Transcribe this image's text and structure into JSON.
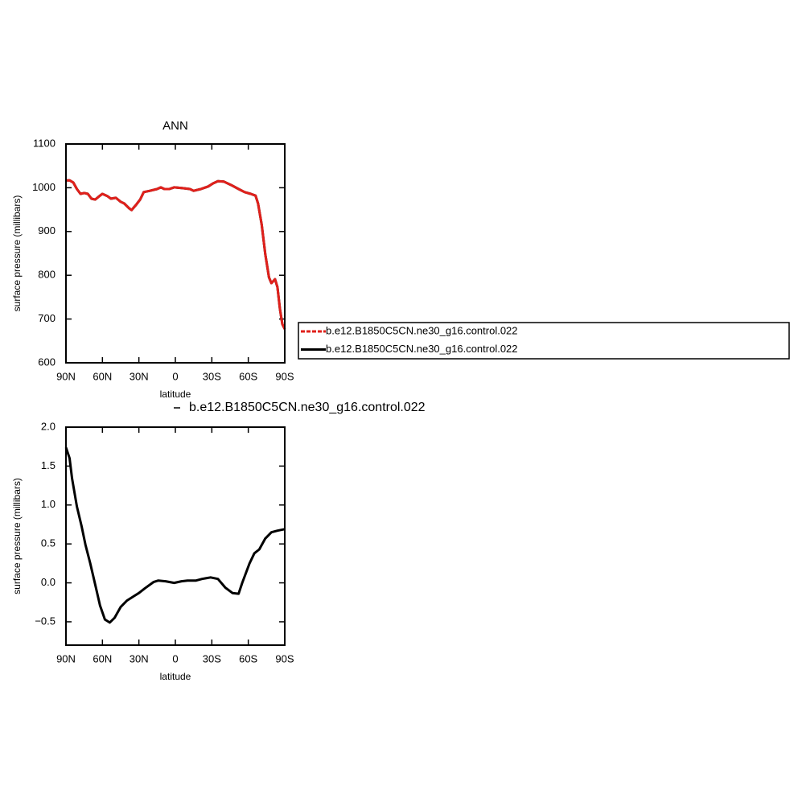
{
  "chart_data": [
    {
      "type": "line",
      "title": "ANN",
      "x_label": "latitude",
      "y_label": "surface pressure (millibars)",
      "xlim": [
        90,
        -90
      ],
      "ylim": [
        600,
        1100
      ],
      "xticks": [
        {
          "value": 90,
          "label": "90N"
        },
        {
          "value": 60,
          "label": "60N"
        },
        {
          "value": 30,
          "label": "30N"
        },
        0,
        {
          "value": -30,
          "label": "30S"
        },
        {
          "value": -60,
          "label": "60S"
        },
        {
          "value": -90,
          "label": "90S"
        }
      ],
      "yticks": [
        600,
        700,
        800,
        900,
        1000,
        1100
      ],
      "legend": "right",
      "x": [
        90,
        87,
        84,
        81,
        78,
        75,
        72,
        69,
        66,
        62,
        60,
        56,
        53,
        49,
        45,
        42,
        38,
        36,
        32,
        29,
        26,
        21,
        15,
        12,
        9,
        5,
        1,
        -6,
        -12,
        -15,
        -21,
        -27,
        -31,
        -35,
        -40,
        -46,
        -52,
        -57,
        -62,
        -66,
        -68,
        -71,
        -74,
        -77,
        -79,
        -82,
        -84,
        -86,
        -88,
        -90
      ],
      "series": [
        {
          "name": "b.e12.B1850C5CN.ne30_g16.control.022",
          "color": "#e0201b",
          "dash": true,
          "values": [
            1017,
            1017,
            1012,
            997,
            986,
            988,
            986,
            975,
            973,
            982,
            986,
            981,
            975,
            977,
            968,
            964,
            953,
            949,
            962,
            973,
            990,
            993,
            997,
            1001,
            997,
            997,
            1001,
            999,
            997,
            993,
            997,
            1003,
            1010,
            1015,
            1014,
            1006,
            997,
            990,
            986,
            982,
            964,
            916,
            848,
            795,
            782,
            791,
            773,
            723,
            688,
            677
          ]
        },
        {
          "name": "b.e12.B1850C5CN.ne30_g16.control.022",
          "color": "#000000",
          "dash": false,
          "values": [
            1017,
            1017,
            1012,
            997,
            986,
            988,
            986,
            975,
            973,
            982,
            986,
            981,
            975,
            977,
            968,
            964,
            953,
            949,
            962,
            973,
            990,
            993,
            997,
            1001,
            997,
            997,
            1001,
            999,
            997,
            993,
            997,
            1003,
            1010,
            1015,
            1014,
            1006,
            997,
            990,
            986,
            982,
            964,
            916,
            848,
            795,
            782,
            791,
            773,
            723,
            688,
            677
          ]
        }
      ]
    },
    {
      "type": "line",
      "x_label": "latitude",
      "y_label": "surface pressure (millibars)",
      "xlim": [
        90,
        -90
      ],
      "ylim": [
        -0.8,
        2.0
      ],
      "xticks": [
        {
          "value": 90,
          "label": "90N"
        },
        {
          "value": 60,
          "label": "60N"
        },
        {
          "value": 30,
          "label": "30N"
        },
        0,
        {
          "value": -30,
          "label": "30S"
        },
        {
          "value": -60,
          "label": "60S"
        },
        {
          "value": -90,
          "label": "90S"
        }
      ],
      "yticks": [
        {
          "value": -0.5,
          "label": "−0.5"
        },
        {
          "value": 0,
          "label": "0.0"
        },
        0.5,
        {
          "value": 1,
          "label": "1.0"
        },
        1.5,
        {
          "value": 2,
          "label": "2.0"
        }
      ],
      "legend": "top",
      "x": [
        90,
        87,
        85,
        81,
        77,
        74,
        70,
        66,
        62,
        58,
        54,
        50,
        45,
        40,
        34,
        30,
        25,
        18,
        14,
        8,
        1,
        -5,
        -10,
        -17,
        -22,
        -29,
        -35,
        -41,
        -47,
        -52,
        -55,
        -61,
        -65,
        -69,
        -74,
        -79,
        -84,
        -90
      ],
      "series": [
        {
          "name": "b.e12.B1850C5CN.ne30_g16.control.022",
          "color": "#000000",
          "dash": false,
          "values": [
            1.74,
            1.6,
            1.34,
            0.98,
            0.72,
            0.49,
            0.25,
            -0.02,
            -0.29,
            -0.47,
            -0.51,
            -0.45,
            -0.31,
            -0.23,
            -0.17,
            -0.13,
            -0.07,
            0.01,
            0.03,
            0.02,
            0.0,
            0.02,
            0.03,
            0.03,
            0.05,
            0.07,
            0.05,
            -0.06,
            -0.13,
            -0.14,
            0.0,
            0.25,
            0.38,
            0.43,
            0.57,
            0.65,
            0.67,
            0.69
          ]
        }
      ]
    }
  ]
}
